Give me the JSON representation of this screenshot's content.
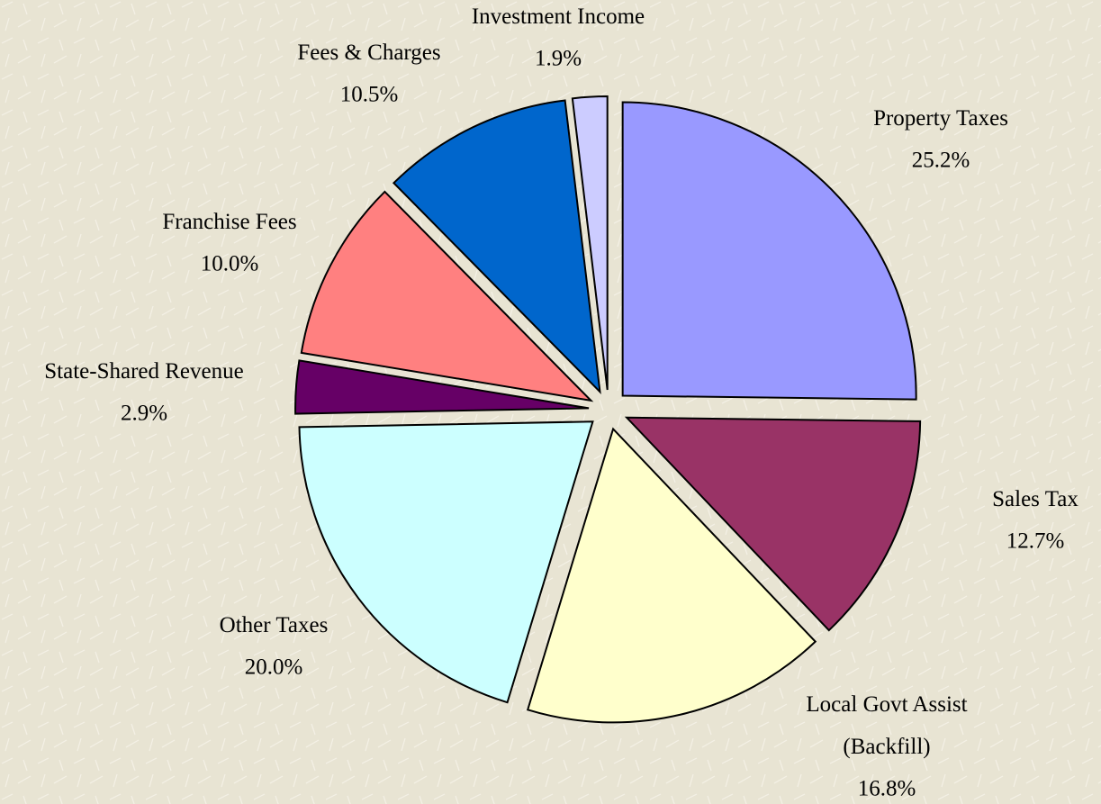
{
  "chart_data": {
    "type": "pie",
    "categories": [
      "Property Taxes",
      "Sales Tax",
      "Local Govt Assist\n(Backfill)",
      "Other Taxes",
      "State-Shared Revenue",
      "Franchise Fees",
      "Fees & Charges",
      "Investment Income"
    ],
    "values": [
      25.2,
      12.7,
      16.8,
      20.0,
      2.9,
      10.0,
      10.5,
      1.9
    ],
    "value_labels": [
      "25.2%",
      "12.7%",
      "16.8%",
      "20.0%",
      "2.9%",
      "10.0%",
      "10.5%",
      "1.9%"
    ],
    "colors": [
      "#9999ff",
      "#993366",
      "#ffffcc",
      "#ccffff",
      "#660066",
      "#ff8080",
      "#0066cc",
      "#ccccff"
    ]
  }
}
